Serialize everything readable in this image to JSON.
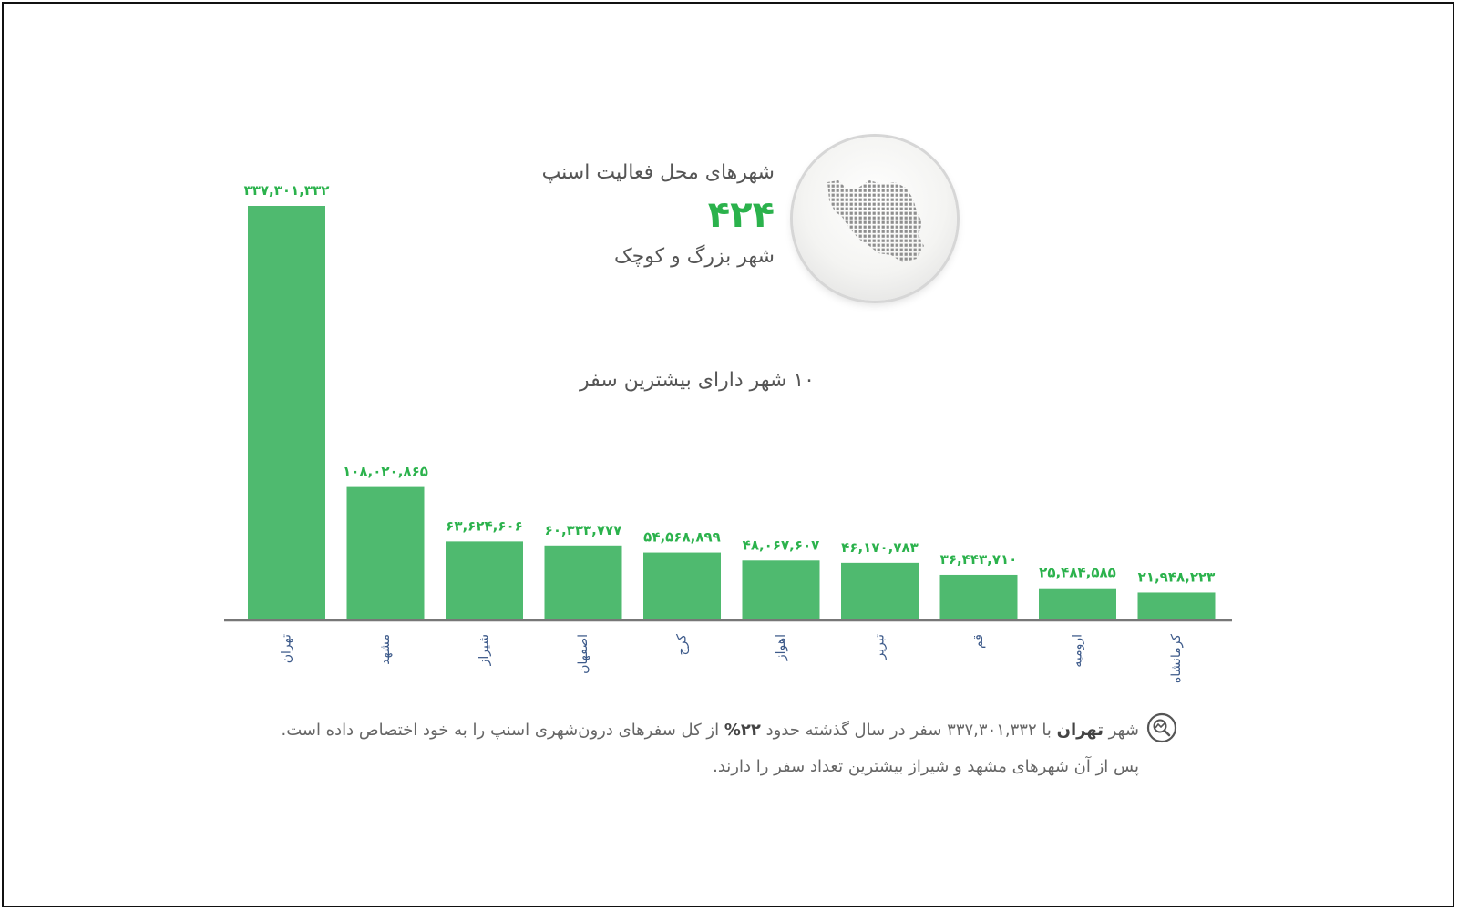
{
  "header": {
    "title": "شهرهای محل فعالیت اسنپ",
    "count": "۴۲۴",
    "subtitle": "شهر بزرگ و کوچک"
  },
  "chart_title": "۱۰ شهر دارای بیشترین سفر",
  "icons": {
    "map": "iran-map-icon",
    "insight": "magnifier-chart-icon"
  },
  "colors": {
    "bar": "#4fba6f",
    "label": "#2bb24c",
    "axis": "#777777",
    "category": "#3d5a8a"
  },
  "chart_data": {
    "type": "bar",
    "title": "۱۰ شهر دارای بیشترین سفر",
    "categories": [
      "تهران",
      "مشهد",
      "شیراز",
      "اصفهان",
      "کرج",
      "اهواز",
      "تبریز",
      "قم",
      "ارومیه",
      "کرمانشاه"
    ],
    "values": [
      337301332,
      108020865,
      63624606,
      60333777,
      54568899,
      48067607,
      46170783,
      36443710,
      25484585,
      21948223
    ],
    "value_labels": [
      "۳۳۷,۳۰۱,۳۳۲",
      "۱۰۸,۰۲۰,۸۶۵",
      "۶۳,۶۲۴,۶۰۶",
      "۶۰,۳۳۳,۷۷۷",
      "۵۴,۵۶۸,۸۹۹",
      "۴۸,۰۶۷,۶۰۷",
      "۴۶,۱۷۰,۷۸۳",
      "۳۶,۴۴۳,۷۱۰",
      "۲۵,۴۸۴,۵۸۵",
      "۲۱,۹۴۸,۲۲۳"
    ],
    "xlabel": "",
    "ylabel": "",
    "ylim": [
      0,
      337301332
    ],
    "grid": false,
    "legend": "none"
  },
  "note": {
    "p1": "شهر ",
    "city": "تهران",
    "p2": " با ۳۳۷,۳۰۱,۳۳۲ سفر در سال گذشته حدود ",
    "percent": "۲۲%",
    "p3": " از کل سفرهای درون‌شهری اسنپ را به خود اختصاص داده است. پس از آن شهرهای مشهد و شیراز بیشترین تعداد سفر را دارند."
  }
}
